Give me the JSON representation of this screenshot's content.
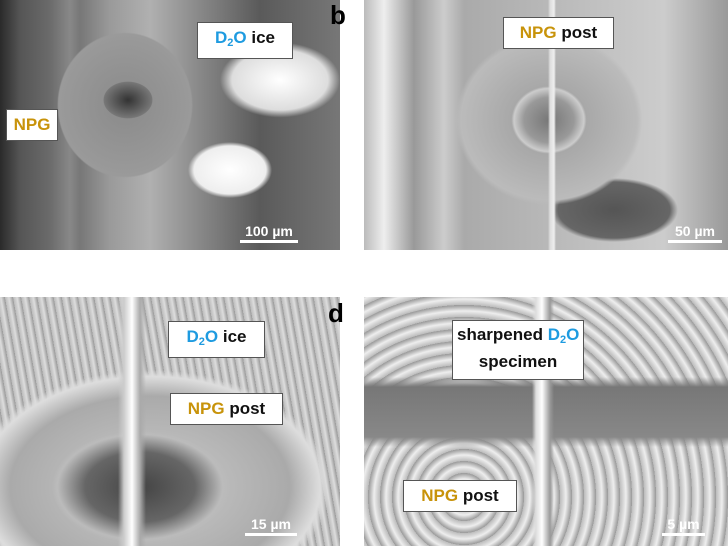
{
  "panels": [
    {
      "labels": [
        {
          "parts": [
            "D",
            "2",
            "O",
            " ice"
          ]
        },
        {
          "parts": [
            "NPG"
          ]
        }
      ],
      "scale_bar": "100 µm"
    },
    {
      "letter": "b",
      "labels": [
        {
          "parts": [
            "NPG",
            " post"
          ]
        }
      ],
      "scale_bar": "50 µm"
    },
    {
      "labels": [
        {
          "parts": [
            "D",
            "2",
            "O",
            " ice"
          ]
        },
        {
          "parts": [
            "NPG",
            " post"
          ]
        }
      ],
      "scale_bar": "15 µm"
    },
    {
      "letter": "d",
      "labels": [
        {
          "parts": [
            "sharpened ",
            "D",
            "2",
            "O",
            "specimen"
          ]
        },
        {
          "parts": [
            "NPG",
            " post"
          ]
        }
      ],
      "scale_bar": "5 µm"
    }
  ]
}
